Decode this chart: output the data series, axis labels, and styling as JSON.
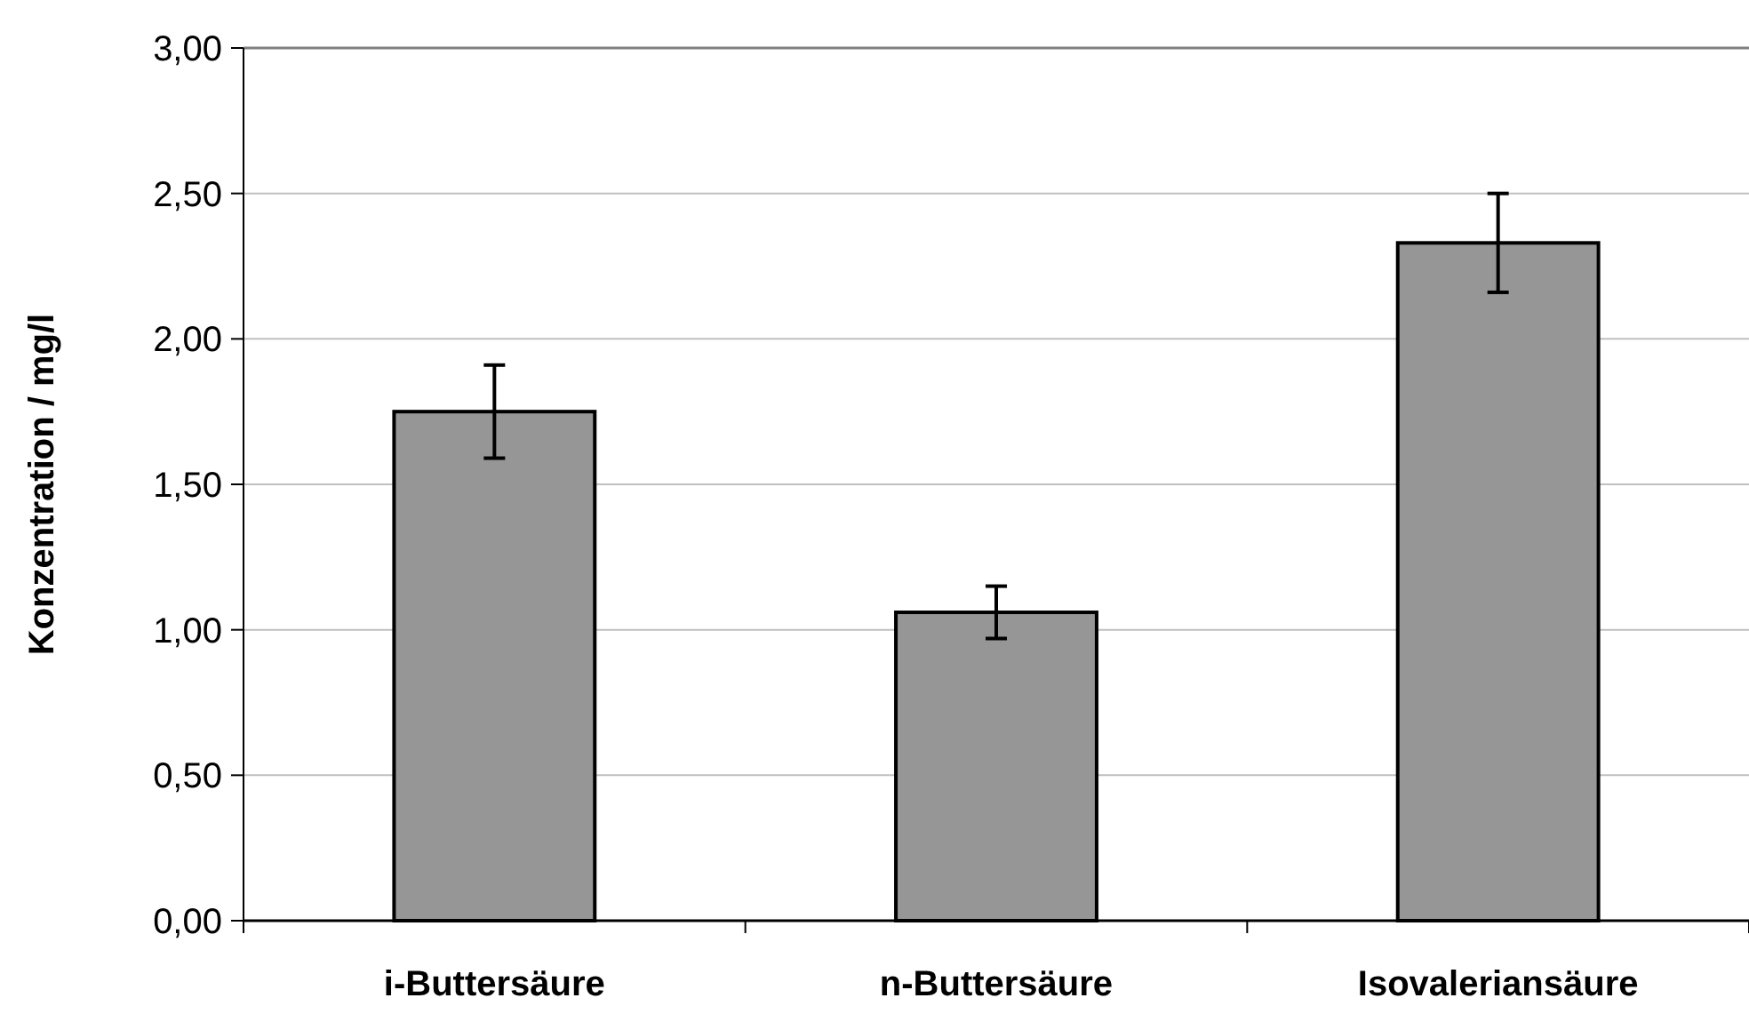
{
  "chart_data": {
    "type": "bar",
    "ylabel": "Konzentration / mg/l",
    "categories": [
      "i-Buttersäure",
      "n-Buttersäure",
      "Isovaleriansäure"
    ],
    "values": [
      1.75,
      1.06,
      2.33
    ],
    "errors": [
      0.16,
      0.09,
      0.17
    ],
    "color": "#969696",
    "ylim": [
      0,
      3
    ],
    "yticks": [
      {
        "value": 0,
        "label": "0,00"
      },
      {
        "value": 0.5,
        "label": "0,50"
      },
      {
        "value": 1,
        "label": "1,00"
      },
      {
        "value": 1.5,
        "label": "1,50"
      },
      {
        "value": 2,
        "label": "2,00"
      },
      {
        "value": 2.5,
        "label": "2,50"
      },
      {
        "value": 3,
        "label": "3,00"
      }
    ],
    "grid": "y"
  }
}
